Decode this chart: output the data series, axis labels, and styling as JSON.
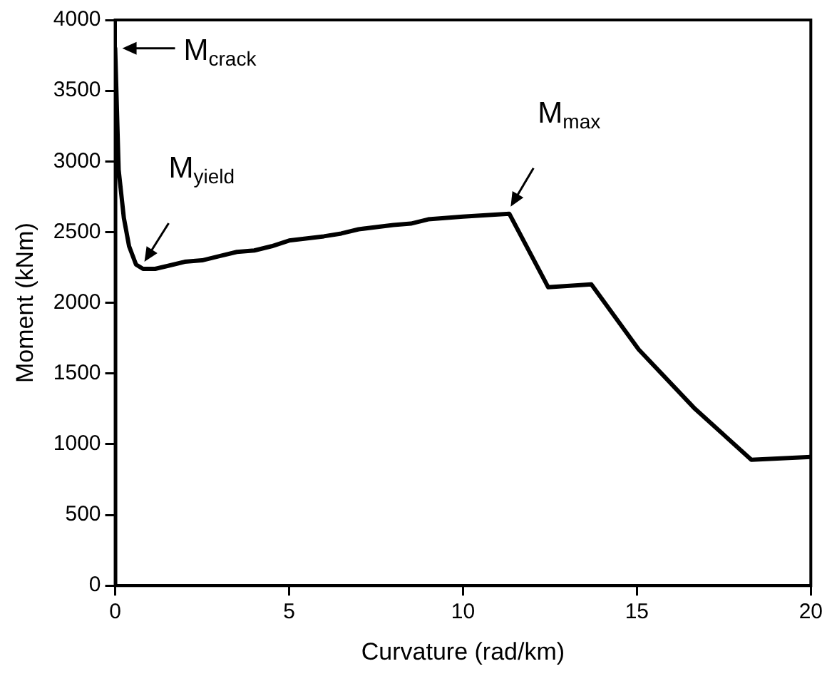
{
  "chart_data": {
    "type": "line",
    "xlabel": "Curvature (rad/km)",
    "ylabel": "Moment (kNm)",
    "series": [
      {
        "color": "#000000",
        "x": [
          0,
          0,
          0.1,
          0.25,
          0.4,
          0.6,
          0.8,
          1.15,
          1.5,
          2,
          2.5,
          3,
          3.5,
          4,
          4.5,
          5,
          6,
          6.5,
          7,
          8,
          8.5,
          9,
          10,
          11.33,
          12.45,
          13.69,
          15.05,
          16.67,
          18.29,
          20
        ],
        "values": [
          0,
          3800,
          2940,
          2600,
          2400,
          2270,
          2240,
          2240,
          2260,
          2290,
          2300,
          2330,
          2360,
          2370,
          2400,
          2440,
          2470,
          2490,
          2520,
          2550,
          2560,
          2590,
          2610,
          2630,
          2110,
          2130,
          1670,
          1250,
          890,
          910
        ]
      }
    ],
    "xlim": [
      0,
      20
    ],
    "xticks": [
      0,
      5,
      10,
      15,
      20
    ],
    "ylim": [
      0,
      4000
    ],
    "yticks": [
      0,
      500,
      1000,
      1500,
      2000,
      2500,
      3000,
      3500,
      4000
    ],
    "grid": false,
    "legend": false,
    "marker": "none",
    "line_style": "solid",
    "annotations": [
      {
        "text": "M$_{crack}$",
        "x": 0,
        "y": 3800
      },
      {
        "text": "M$_{yield}$",
        "x": 0.8,
        "y": 2240
      },
      {
        "text": "M$_{max}$",
        "x": 11.33,
        "y": 2630
      }
    ]
  }
}
